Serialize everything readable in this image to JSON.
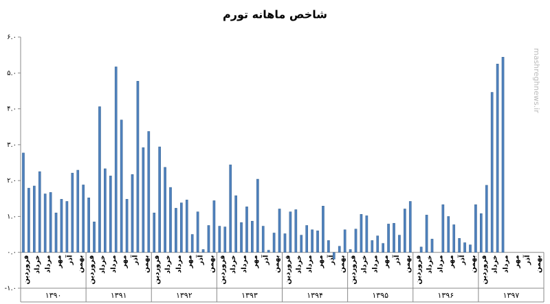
{
  "chart_data": {
    "type": "bar",
    "title": "شاخص ماهانه تورم",
    "watermark": "mashreghnews.ir",
    "color": "#4f81bd",
    "categories": [
      "فروردین",
      null,
      "خرداد",
      null,
      "مرداد",
      null,
      "مهر",
      null,
      "آذر",
      null,
      "بهمن",
      null,
      "فروردین",
      null,
      "خرداد",
      null,
      "مرداد",
      null,
      "مهر",
      null,
      "آذر",
      null,
      "بهمن",
      null,
      "فروردین",
      null,
      "خرداد",
      null,
      "مرداد",
      null,
      "مهر",
      null,
      "آذر",
      null,
      "بهمن",
      null,
      "فروردین",
      null,
      "خرداد",
      null,
      "مرداد",
      null,
      "مهر",
      null,
      "آذر",
      null,
      "بهمن",
      null,
      "فروردین",
      null,
      "خرداد",
      null,
      "مرداد",
      null,
      "مهر",
      null,
      "آذر",
      null,
      "بهمن",
      null,
      "فروردین",
      null,
      "خرداد",
      null,
      "مرداد",
      null,
      "مهر",
      null,
      "آذر",
      null,
      "بهمن",
      null,
      "فروردین",
      null,
      "خرداد",
      null,
      "مرداد",
      null,
      "مهر",
      null,
      "آذر",
      null,
      "بهمن",
      null,
      "فروردین",
      null,
      "خرداد",
      null,
      "مرداد",
      null,
      "مهر",
      null,
      "آذر",
      null,
      "بهمن",
      null
    ],
    "years": [
      "۱۳۹۰",
      "۱۳۹۱",
      "۱۳۹۲",
      "۱۳۹۳",
      "۱۳۹۴",
      "۱۳۹۵",
      "۱۳۹۶",
      "۱۳۹۷"
    ],
    "values": [
      2.77,
      1.79,
      1.85,
      2.25,
      1.63,
      1.67,
      1.1,
      1.48,
      1.42,
      2.21,
      2.29,
      1.88,
      1.52,
      0.85,
      4.06,
      2.33,
      2.13,
      5.17,
      3.69,
      1.48,
      2.17,
      4.77,
      2.92,
      3.37,
      1.1,
      2.94,
      2.37,
      1.81,
      1.23,
      1.38,
      1.46,
      0.5,
      1.13,
      0.08,
      0.75,
      1.44,
      0.73,
      0.71,
      2.44,
      1.58,
      0.83,
      1.27,
      0.87,
      2.04,
      0.73,
      0.06,
      0.54,
      1.21,
      0.52,
      1.13,
      1.19,
      0.48,
      0.75,
      0.63,
      0.6,
      1.29,
      0.33,
      -0.19,
      0.17,
      0.63,
      0.08,
      0.65,
      1.06,
      1.02,
      0.33,
      0.46,
      0.25,
      0.79,
      0.81,
      0.48,
      1.21,
      1.42,
      0.0,
      0.15,
      1.04,
      0.37,
      0.0,
      1.33,
      1.0,
      0.77,
      0.39,
      0.27,
      0.21,
      1.33,
      1.08,
      1.87,
      4.46,
      5.25,
      5.44,
      null,
      null,
      null,
      null,
      null,
      null,
      null
    ],
    "ylim": [
      -1,
      6
    ],
    "yticks": [
      {
        "value": -1,
        "label": "-۱.۰"
      },
      {
        "value": 0,
        "label": "۰.۰"
      },
      {
        "value": 1,
        "label": "۱.۰"
      },
      {
        "value": 2,
        "label": "۲.۰"
      },
      {
        "value": 3,
        "label": "۳.۰"
      },
      {
        "value": 4,
        "label": "۴.۰"
      },
      {
        "value": 5,
        "label": "۵.۰"
      },
      {
        "value": 6,
        "label": "۶.۰"
      }
    ]
  }
}
